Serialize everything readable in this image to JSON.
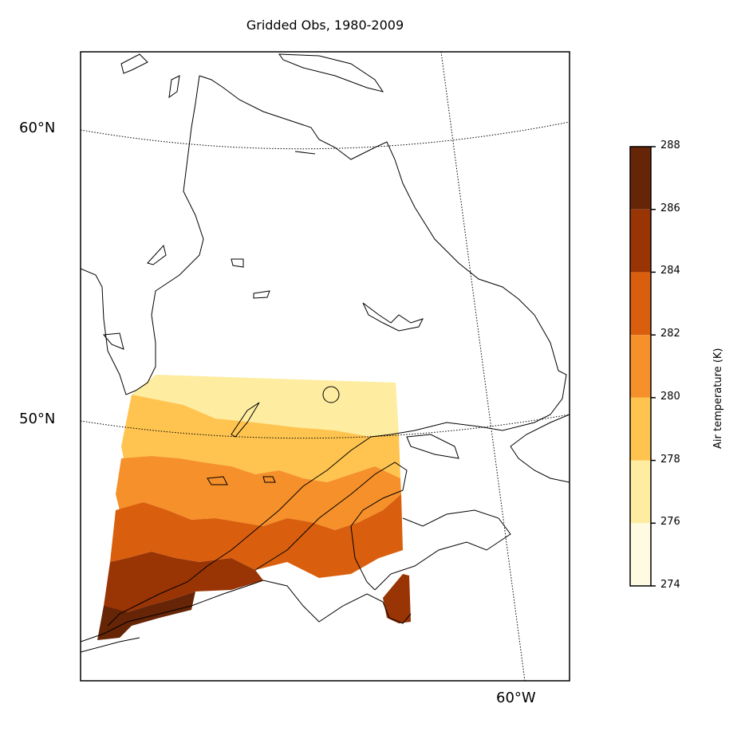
{
  "title": "Gridded Obs, 1980-2009",
  "graticule": {
    "lat_labels": [
      "60°N",
      "50°N"
    ],
    "lon_labels": [
      "60°W"
    ]
  },
  "colorbar": {
    "label": "Air temperature (K)",
    "ticks": [
      "288",
      "286",
      "284",
      "282",
      "280",
      "278",
      "276",
      "274"
    ],
    "levels": [
      {
        "min": 286,
        "max": 288,
        "color": "#662506"
      },
      {
        "min": 284,
        "max": 286,
        "color": "#993404"
      },
      {
        "min": 282,
        "max": 284,
        "color": "#d95f0e"
      },
      {
        "min": 280,
        "max": 282,
        "color": "#f6902a"
      },
      {
        "min": 278,
        "max": 280,
        "color": "#fec44f"
      },
      {
        "min": 276,
        "max": 278,
        "color": "#feeca0"
      },
      {
        "min": 274,
        "max": 276,
        "color": "#fffbe2"
      }
    ]
  }
}
